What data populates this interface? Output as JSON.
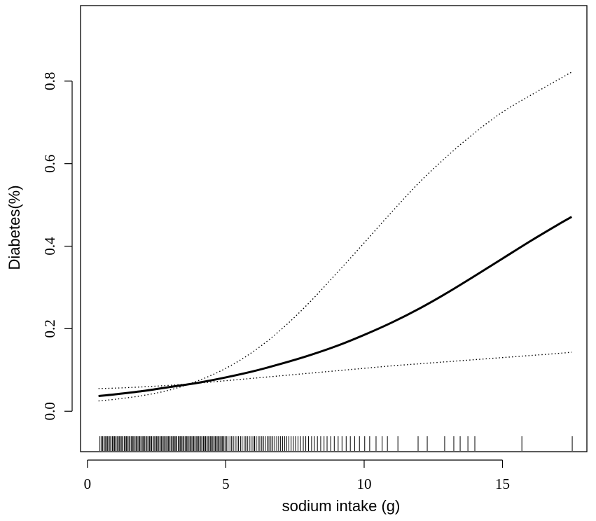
{
  "chart_data": {
    "type": "line",
    "title": "",
    "xlabel": "sodium intake (g)",
    "ylabel": "Diabetes(%)",
    "xlim": [
      -0.25,
      18.05
    ],
    "ylim": [
      -0.098,
      0.983
    ],
    "x_ticks": [
      0,
      5,
      10,
      15
    ],
    "x_tick_labels": [
      "0",
      "5",
      "10",
      "15"
    ],
    "y_ticks": [
      0,
      0.2,
      0.4,
      0.6,
      0.8
    ],
    "y_tick_labels": [
      "0.0",
      "0.2",
      "0.4",
      "0.6",
      "0.8"
    ],
    "grid": false,
    "legend": "none",
    "x": [
      0.4,
      1,
      2,
      3,
      4,
      5,
      6,
      7,
      8,
      9,
      10,
      11,
      12,
      13,
      14,
      15,
      16,
      17,
      17.5
    ],
    "series": [
      {
        "style": "solid",
        "color": "#000000",
        "values": [
          0.037,
          0.041,
          0.049,
          0.059,
          0.069,
          0.082,
          0.097,
          0.115,
          0.135,
          0.158,
          0.185,
          0.215,
          0.249,
          0.287,
          0.328,
          0.37,
          0.412,
          0.452,
          0.471
        ]
      },
      {
        "style": "dotted",
        "color": "#000000",
        "values": [
          0.025,
          0.029,
          0.038,
          0.052,
          0.074,
          0.104,
          0.145,
          0.198,
          0.262,
          0.334,
          0.408,
          0.483,
          0.555,
          0.618,
          0.675,
          0.725,
          0.765,
          0.803,
          0.822
        ]
      },
      {
        "style": "dotted",
        "color": "#000000",
        "values": [
          0.055,
          0.056,
          0.059,
          0.063,
          0.068,
          0.074,
          0.08,
          0.086,
          0.092,
          0.098,
          0.104,
          0.11,
          0.115,
          0.12,
          0.125,
          0.13,
          0.135,
          0.14,
          0.143
        ]
      }
    ],
    "rug": [
      0.45,
      0.5,
      0.55,
      0.6,
      0.64,
      0.68,
      0.72,
      0.77,
      0.81,
      0.85,
      0.9,
      0.94,
      0.98,
      1.02,
      1.07,
      1.11,
      1.15,
      1.2,
      1.24,
      1.28,
      1.33,
      1.37,
      1.41,
      1.46,
      1.5,
      1.54,
      1.59,
      1.63,
      1.67,
      1.72,
      1.76,
      1.8,
      1.85,
      1.89,
      1.93,
      1.98,
      2.02,
      2.06,
      2.11,
      2.15,
      2.19,
      2.24,
      2.28,
      2.32,
      2.37,
      2.41,
      2.45,
      2.5,
      2.54,
      2.58,
      2.63,
      2.67,
      2.71,
      2.76,
      2.8,
      2.84,
      2.89,
      2.93,
      2.97,
      3.02,
      3.06,
      3.1,
      3.15,
      3.19,
      3.23,
      3.28,
      3.32,
      3.36,
      3.41,
      3.45,
      3.49,
      3.54,
      3.58,
      3.62,
      3.67,
      3.71,
      3.75,
      3.8,
      3.84,
      3.88,
      3.93,
      3.97,
      4.01,
      4.06,
      4.1,
      4.14,
      4.19,
      4.23,
      4.27,
      4.32,
      4.36,
      4.4,
      4.45,
      4.49,
      4.53,
      4.58,
      4.62,
      4.66,
      4.71,
      4.75,
      4.79,
      4.84,
      4.88,
      4.92,
      4.97,
      5.02,
      5.08,
      5.15,
      5.21,
      5.27,
      5.34,
      5.4,
      5.46,
      5.53,
      5.59,
      5.66,
      5.72,
      5.78,
      5.85,
      5.91,
      5.98,
      6.04,
      6.1,
      6.17,
      6.23,
      6.3,
      6.36,
      6.43,
      6.5,
      6.56,
      6.63,
      6.7,
      6.77,
      6.84,
      6.91,
      6.98,
      7.05,
      7.13,
      7.2,
      7.28,
      7.36,
      7.44,
      7.52,
      7.61,
      7.7,
      7.8,
      7.89,
      7.99,
      8.1,
      8.2,
      8.31,
      8.43,
      8.55,
      8.66,
      8.79,
      8.92,
      9.06,
      9.2,
      9.35,
      9.5,
      9.66,
      9.83,
      10.02,
      10.2,
      10.43,
      10.65,
      10.84,
      11.22,
      11.95,
      12.28,
      12.91,
      13.24,
      13.47,
      13.75,
      14.0,
      15.7,
      17.52
    ]
  }
}
